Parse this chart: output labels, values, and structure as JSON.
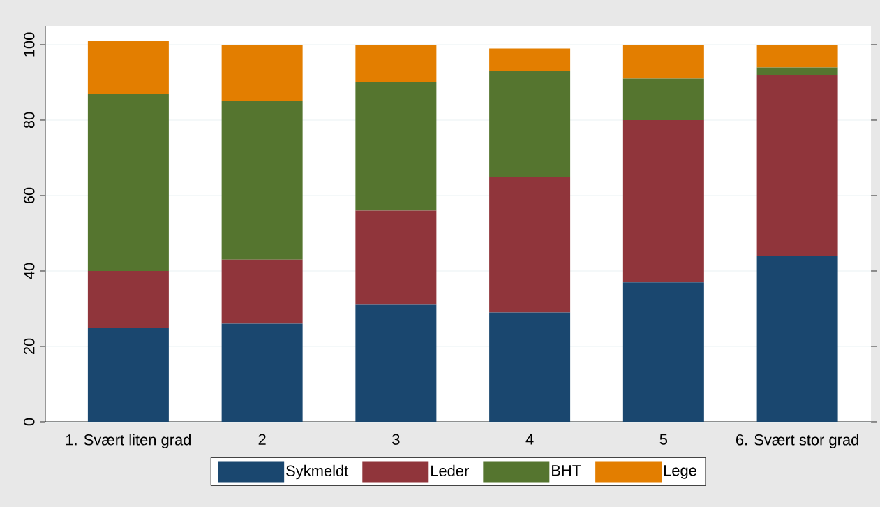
{
  "chart_data": {
    "type": "bar",
    "stacked": true,
    "categories": [
      "1. Svært liten grad",
      "2",
      "3",
      "4",
      "5",
      "6. Svært stor grad"
    ],
    "series": [
      {
        "name": "Sykmeldt",
        "color": "#1a476f",
        "values": [
          25,
          26,
          31,
          29,
          37,
          44
        ]
      },
      {
        "name": "Leder",
        "color": "#90353b",
        "values": [
          15,
          17,
          25,
          36,
          43,
          48
        ]
      },
      {
        "name": "BHT",
        "color": "#55752f",
        "values": [
          47,
          42,
          34,
          28,
          11,
          2
        ]
      },
      {
        "name": "Lege",
        "color": "#e37e00",
        "values": [
          14,
          15,
          10,
          6,
          9,
          6
        ]
      }
    ],
    "ylim": [
      0,
      105
    ],
    "yticks": [
      0,
      20,
      40,
      60,
      80,
      100
    ],
    "grid": "y",
    "legend": "bottom"
  }
}
